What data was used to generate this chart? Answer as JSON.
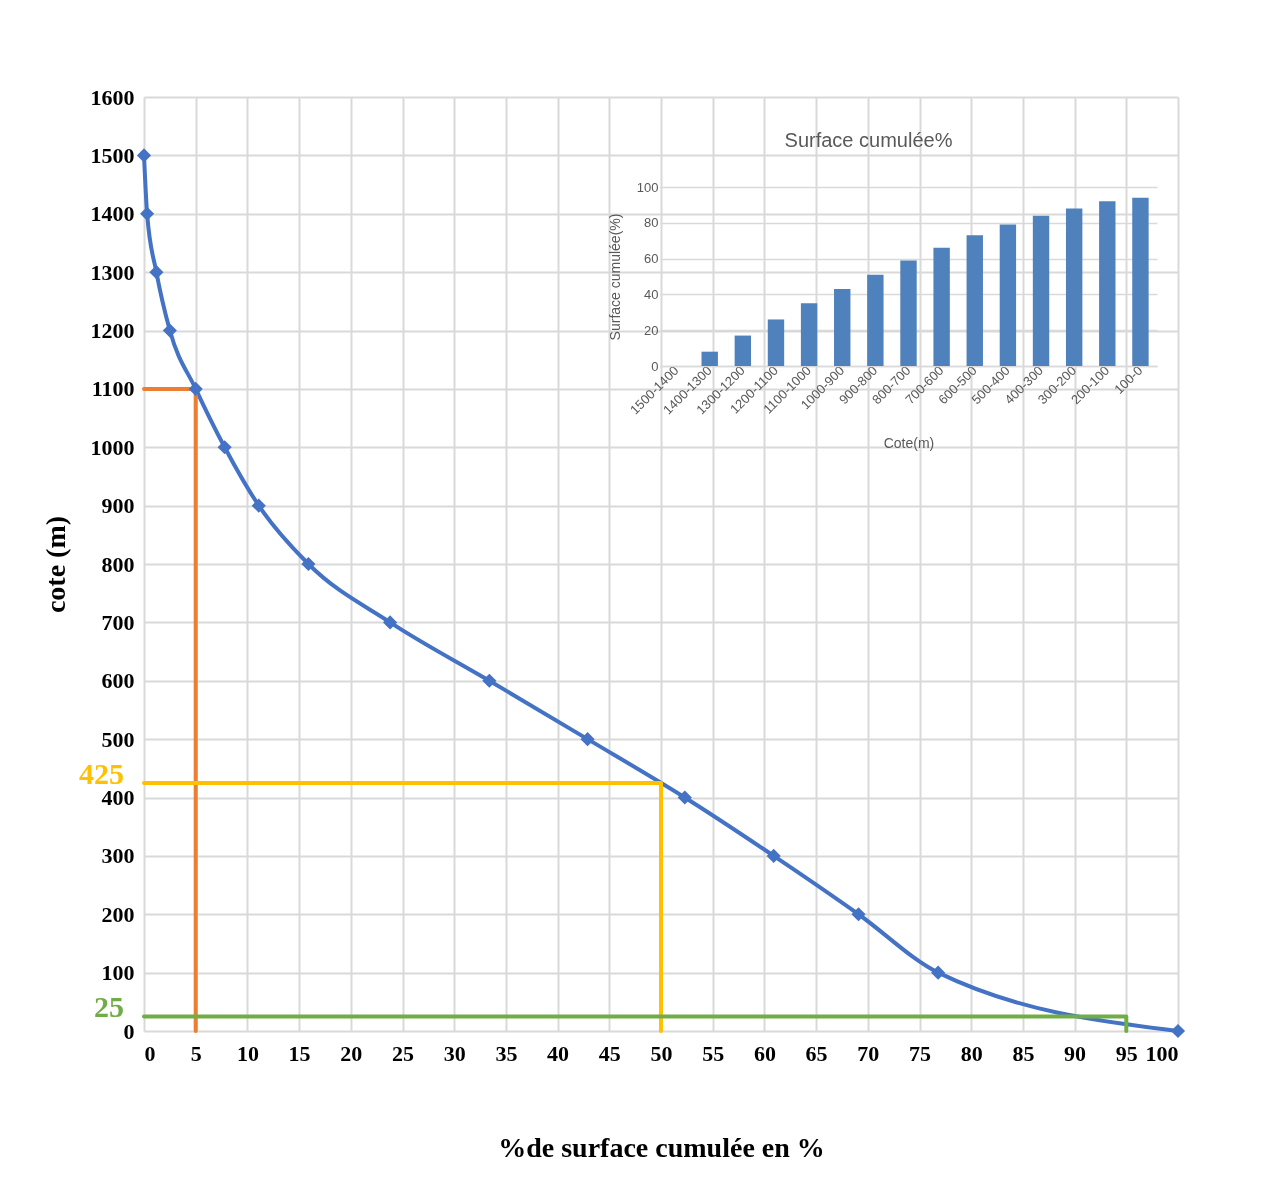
{
  "chart_data": [
    {
      "type": "line",
      "xlabel": "%de surface  cumulée en %",
      "ylabel": "cote (m)",
      "xlim": [
        0,
        100
      ],
      "xticks": [
        0,
        5,
        10,
        15,
        20,
        25,
        30,
        35,
        40,
        45,
        50,
        55,
        60,
        65,
        70,
        75,
        80,
        85,
        90,
        95,
        100
      ],
      "ylim": [
        0,
        1600
      ],
      "yticks": [
        0,
        100,
        200,
        300,
        400,
        500,
        600,
        700,
        800,
        900,
        1000,
        1100,
        1200,
        1300,
        1400,
        1500,
        1600
      ],
      "grid": true,
      "marker": "diamond",
      "line_style": "solid",
      "series": [
        {
          "color": "#4472c4",
          "x": [
            0,
            0.3,
            1.2,
            2.5,
            5.0,
            7.8,
            11.1,
            15.9,
            23.8,
            33.4,
            42.9,
            52.3,
            60.9,
            69.1,
            76.8,
            100
          ],
          "values": [
            1500,
            1400,
            1300,
            1200,
            1100,
            1000,
            900,
            800,
            700,
            600,
            500,
            400,
            300,
            200,
            100,
            0
          ]
        },
        {
          "color": "#ed7d31",
          "marker": "none",
          "x": [
            0,
            5,
            5
          ],
          "values": [
            1100,
            1100,
            0
          ]
        },
        {
          "color": "#ffc000",
          "marker": "none",
          "x": [
            0,
            50,
            50
          ],
          "values": [
            425,
            425,
            0
          ]
        },
        {
          "color": "#70ad47",
          "marker": "none",
          "x": [
            0,
            95,
            95
          ],
          "values": [
            25,
            25,
            0
          ]
        }
      ],
      "annotations": [
        {
          "text": "425",
          "x": 0,
          "y": 425
        },
        {
          "text": "25",
          "x": 0,
          "y": 25
        }
      ]
    },
    {
      "type": "bar",
      "title": "Surface cumulée%",
      "xlabel": "Cote(m)",
      "ylabel": "Surface cumulée(%)",
      "categories": [
        "1500-1400",
        "1400-1300",
        "1300-1200",
        "1200-1100",
        "1100-1000",
        "1000-900",
        "900-800",
        "800-700",
        "700-600",
        "600-500",
        "500-400",
        "400-300",
        "300-200",
        "200-100",
        "100-0"
      ],
      "values": [
        0,
        8,
        17,
        26,
        35,
        43,
        51,
        59,
        66,
        73,
        79,
        84,
        88,
        92,
        94
      ],
      "color": "#4f81bd",
      "ylim": [
        0,
        100
      ],
      "yticks": [
        0,
        20,
        40,
        60,
        80,
        100
      ],
      "grid": "y"
    }
  ]
}
